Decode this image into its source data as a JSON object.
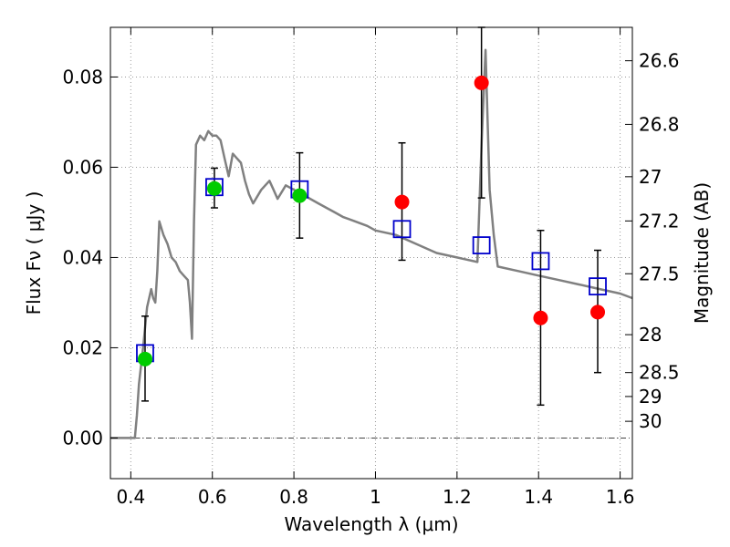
{
  "chart_data": {
    "type": "scatter",
    "xlabel": "Wavelength  λ (μm)",
    "ylabel": "Flux  Fν  ( μJy )",
    "y2label": "Magnitude (AB)",
    "xlim": [
      0.35,
      1.63
    ],
    "ylim": [
      -0.009,
      0.091
    ],
    "xticks": [
      0.4,
      0.6,
      0.8,
      1.0,
      1.2,
      1.4,
      1.6
    ],
    "xtick_labels": [
      "0.4",
      "0.6",
      "0.8",
      "1",
      "1.2",
      "1.4",
      "1.6"
    ],
    "yticks": [
      0.0,
      0.02,
      0.04,
      0.06,
      0.08
    ],
    "ytick_labels": [
      "0.00",
      "0.02",
      "0.04",
      "0.06",
      "0.08"
    ],
    "y2ticks": [
      {
        "flux": 0.0836,
        "label": "26.6"
      },
      {
        "flux": 0.0695,
        "label": "26.8"
      },
      {
        "flux": 0.0579,
        "label": "27"
      },
      {
        "flux": 0.0481,
        "label": "27.2"
      },
      {
        "flux": 0.0364,
        "label": "27.5"
      },
      {
        "flux": 0.0229,
        "label": "28"
      },
      {
        "flux": 0.0145,
        "label": "28.5"
      },
      {
        "flux": 0.0092,
        "label": "29"
      },
      {
        "flux": 0.0037,
        "label": "30"
      }
    ],
    "grid": true,
    "zero_line": true,
    "colors": {
      "model": "#808080",
      "optical_points": "#00cc00",
      "nir_points": "#ff0000",
      "model_boxes": "#0000cc",
      "errorbars": "#000000"
    },
    "model_sed": {
      "x": [
        0.35,
        0.41,
        0.415,
        0.42,
        0.43,
        0.44,
        0.45,
        0.455,
        0.46,
        0.465,
        0.47,
        0.48,
        0.49,
        0.5,
        0.51,
        0.52,
        0.53,
        0.54,
        0.545,
        0.55,
        0.555,
        0.56,
        0.57,
        0.58,
        0.59,
        0.6,
        0.61,
        0.62,
        0.63,
        0.64,
        0.65,
        0.66,
        0.67,
        0.68,
        0.69,
        0.7,
        0.72,
        0.74,
        0.75,
        0.76,
        0.78,
        0.8,
        0.82,
        0.84,
        0.86,
        0.88,
        0.9,
        0.92,
        0.95,
        0.98,
        1.0,
        1.05,
        1.1,
        1.15,
        1.2,
        1.25,
        1.26,
        1.27,
        1.275,
        1.28,
        1.29,
        1.3,
        1.35,
        1.4,
        1.45,
        1.5,
        1.55,
        1.6,
        1.63
      ],
      "y": [
        0.0,
        0.0,
        0.005,
        0.012,
        0.02,
        0.029,
        0.033,
        0.031,
        0.03,
        0.037,
        0.048,
        0.045,
        0.043,
        0.04,
        0.039,
        0.037,
        0.036,
        0.035,
        0.03,
        0.022,
        0.048,
        0.065,
        0.067,
        0.066,
        0.068,
        0.067,
        0.067,
        0.066,
        0.062,
        0.058,
        0.063,
        0.062,
        0.061,
        0.057,
        0.054,
        0.052,
        0.055,
        0.057,
        0.055,
        0.053,
        0.056,
        0.055,
        0.054,
        0.053,
        0.052,
        0.051,
        0.05,
        0.049,
        0.048,
        0.047,
        0.046,
        0.045,
        0.043,
        0.041,
        0.04,
        0.039,
        0.065,
        0.086,
        0.07,
        0.055,
        0.045,
        0.038,
        0.037,
        0.036,
        0.035,
        0.034,
        0.033,
        0.032,
        0.031
      ]
    },
    "observed_green": [
      {
        "x": 0.435,
        "y": 0.0175,
        "ylow": 0.0175,
        "yhigh": 0.0175
      },
      {
        "x": 0.605,
        "y": 0.0553,
        "ylow": 0.051,
        "yhigh": 0.0598
      },
      {
        "x": 0.814,
        "y": 0.0537,
        "ylow": 0.0443,
        "yhigh": 0.0632
      }
    ],
    "observed_red": [
      {
        "x": 1.065,
        "y": 0.0523,
        "ylow": 0.0394,
        "yhigh": 0.0654
      },
      {
        "x": 1.26,
        "y": 0.0787,
        "ylow": 0.0532,
        "yhigh": 0.091
      },
      {
        "x": 1.405,
        "y": 0.0266,
        "ylow": 0.0073,
        "yhigh": 0.046
      },
      {
        "x": 1.545,
        "y": 0.0279,
        "ylow": 0.0145,
        "yhigh": 0.0416
      }
    ],
    "errorbar_blue_first": {
      "x": 0.435,
      "ylow": 0.0082,
      "yhigh": 0.027
    },
    "model_boxes": [
      {
        "x": 0.435,
        "y": 0.0188
      },
      {
        "x": 0.605,
        "y": 0.0556
      },
      {
        "x": 0.814,
        "y": 0.0551
      },
      {
        "x": 1.065,
        "y": 0.0463
      },
      {
        "x": 1.26,
        "y": 0.0427
      },
      {
        "x": 1.405,
        "y": 0.0392
      },
      {
        "x": 1.545,
        "y": 0.0336
      }
    ]
  }
}
